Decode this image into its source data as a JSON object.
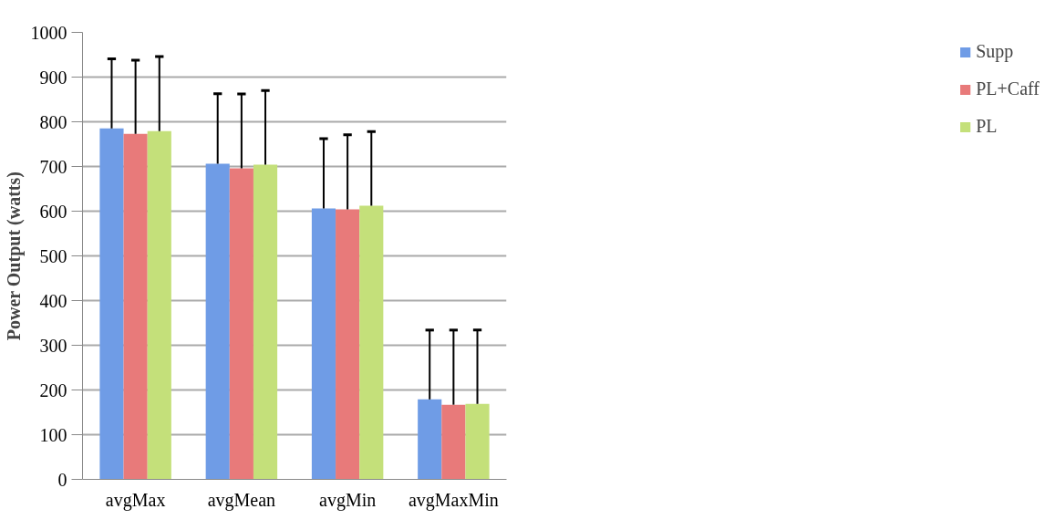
{
  "chart_data": {
    "type": "bar",
    "ylabel": "Power Output (watts)",
    "categories": [
      "avgMax",
      "avgMean",
      "avgMin",
      "avgMaxMin"
    ],
    "series": [
      {
        "name": "Supp",
        "color": "#6f9ce6",
        "values": [
          785,
          706,
          606,
          179
        ],
        "errors": [
          [
            785,
            941
          ],
          [
            706,
            863
          ],
          [
            606,
            762
          ],
          [
            179,
            334
          ]
        ]
      },
      {
        "name": "PL+Caff",
        "color": "#e87a7a",
        "values": [
          773,
          696,
          604,
          167
        ],
        "errors": [
          [
            773,
            938
          ],
          [
            696,
            862
          ],
          [
            604,
            771
          ],
          [
            167,
            334
          ]
        ]
      },
      {
        "name": "PL",
        "color": "#c4e07a",
        "values": [
          779,
          704,
          612,
          169
        ],
        "errors": [
          [
            779,
            946
          ],
          [
            704,
            870
          ],
          [
            612,
            778
          ],
          [
            169,
            334
          ]
        ]
      }
    ],
    "ylim": [
      0,
      1000
    ],
    "yticks": [
      0,
      100,
      200,
      300,
      400,
      500,
      600,
      700,
      800,
      900,
      1000
    ],
    "grid": "y",
    "legend": "right"
  }
}
